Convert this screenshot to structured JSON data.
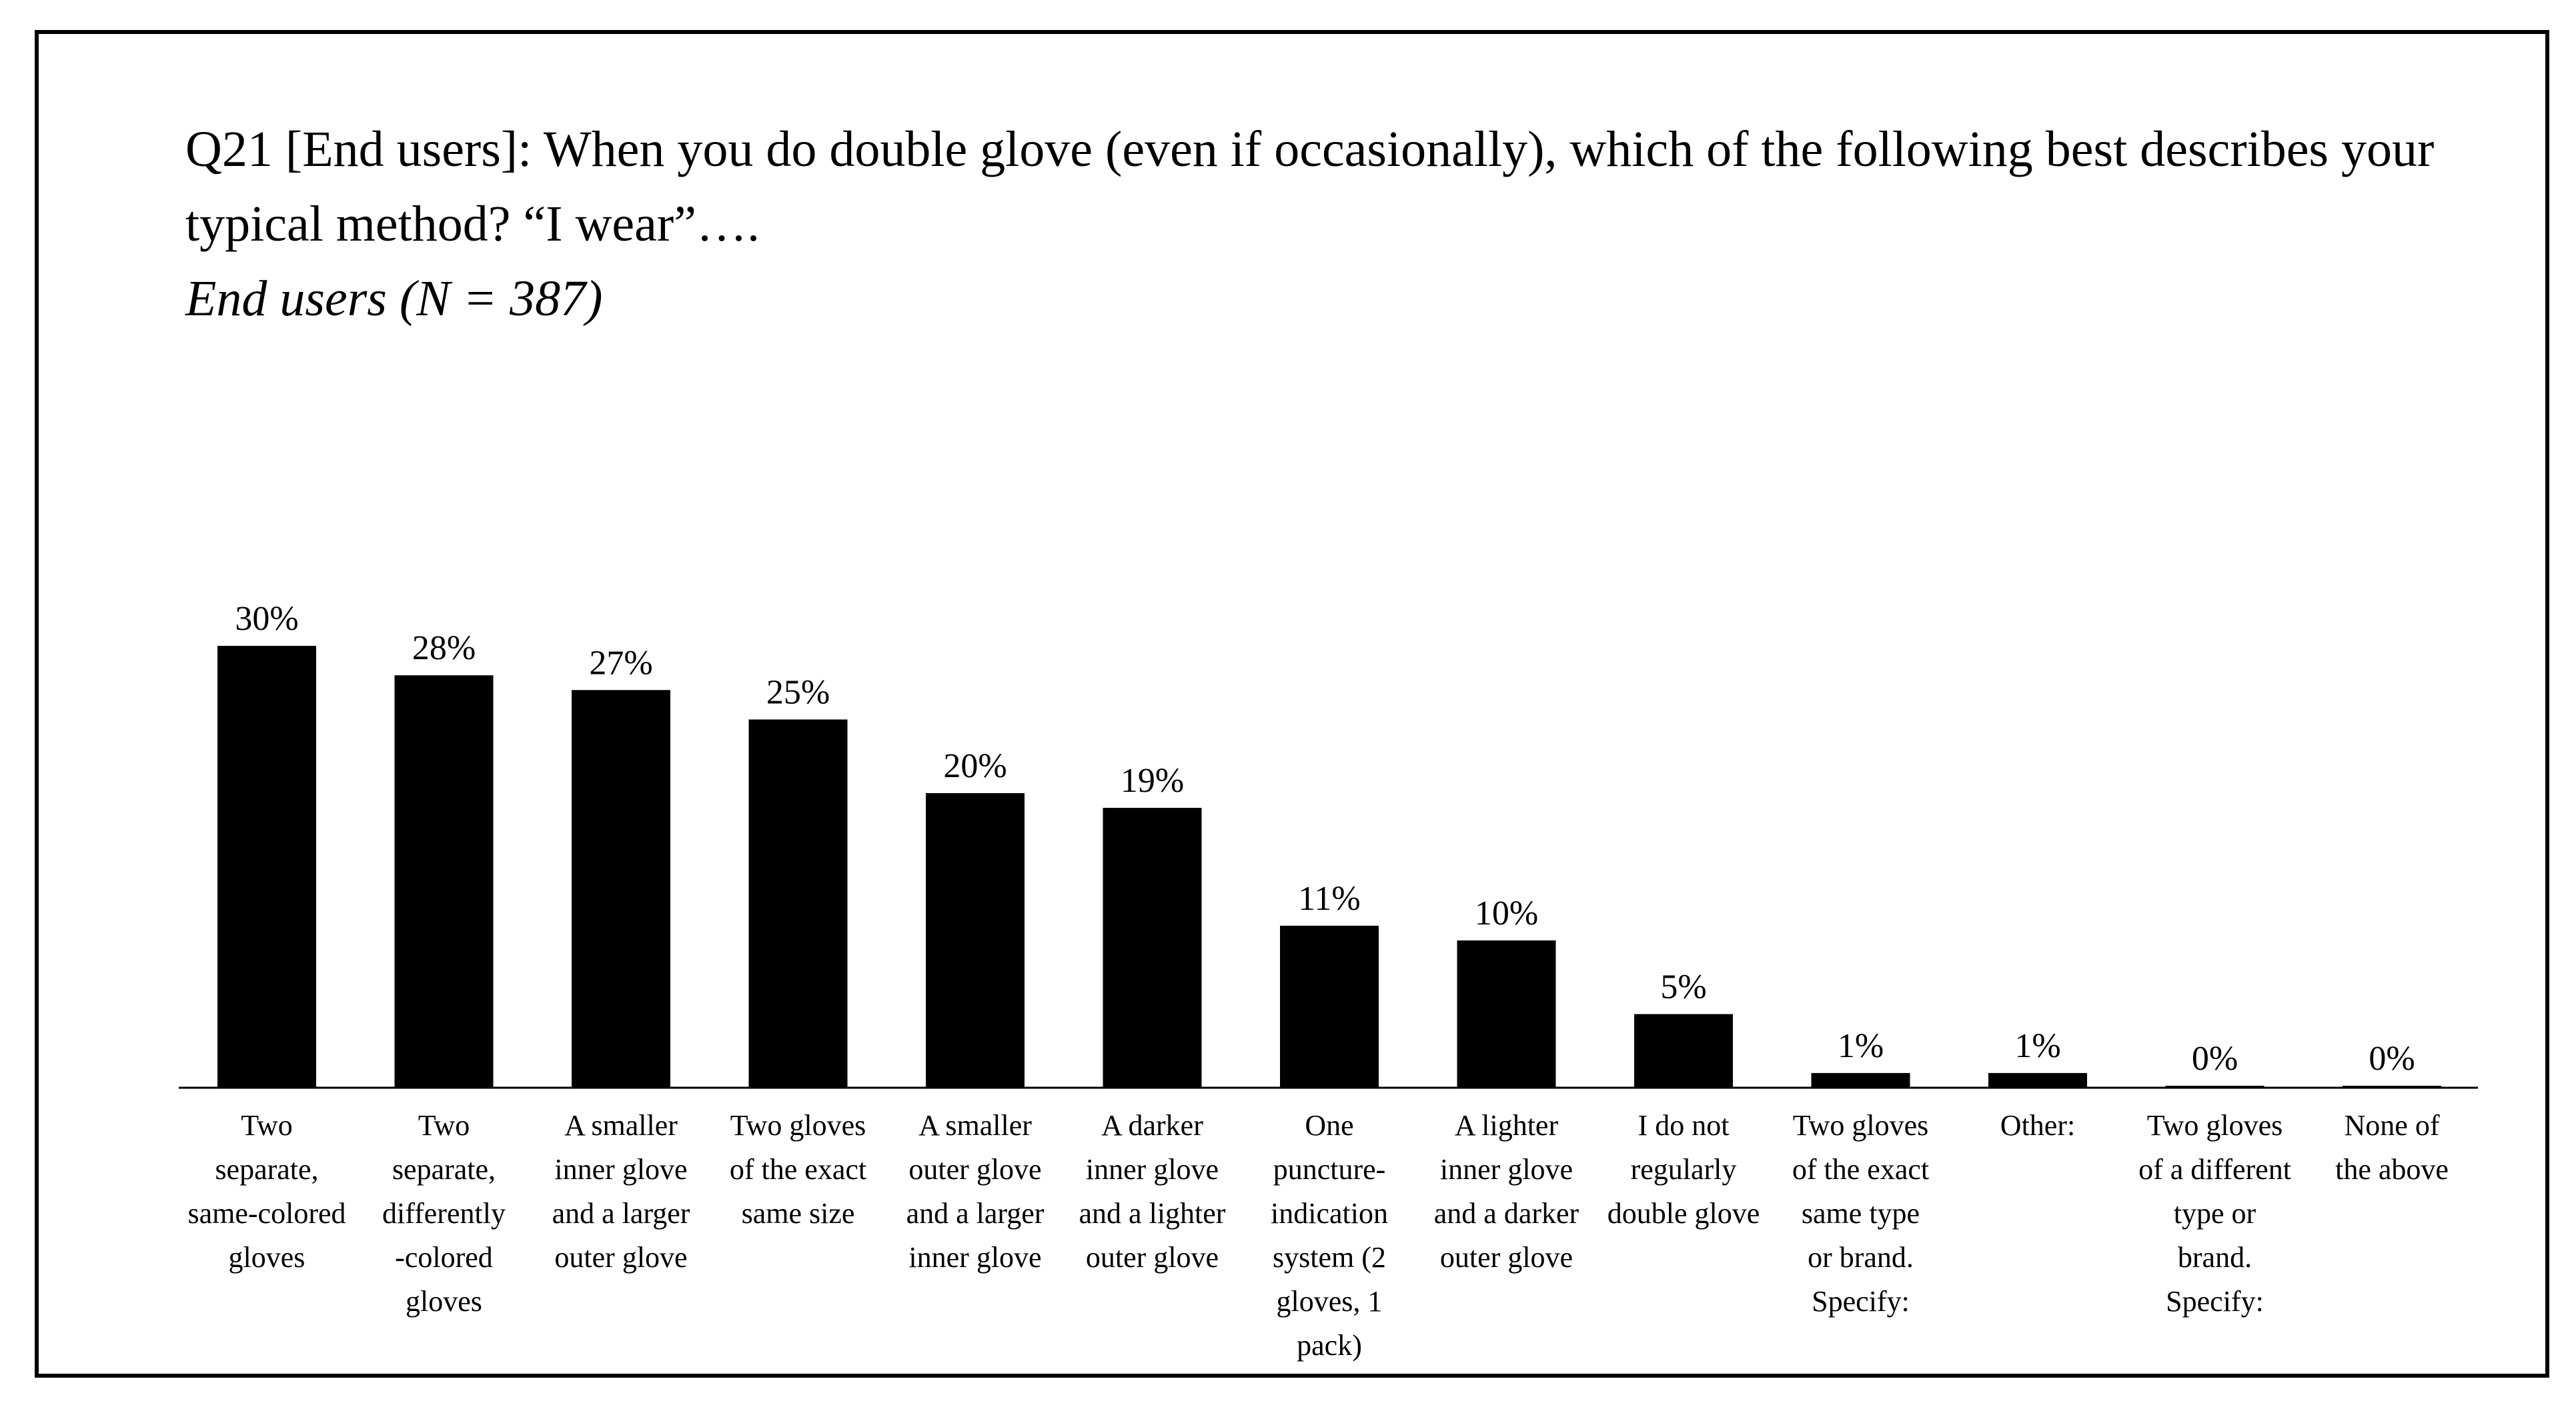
{
  "chart_data": {
    "type": "bar",
    "title": "Q21 [End users]: When you do double glove (even if occasionally), which of the following best describes your typical method? “I wear”….",
    "subtitle": "End users (N = 387)",
    "xlabel": "",
    "ylabel": "",
    "ylim": [
      0,
      30
    ],
    "grid": false,
    "legend": "none",
    "bar_color": "#000000",
    "categories": [
      [
        "Two",
        "separate,",
        "same-colored",
        "gloves"
      ],
      [
        "Two",
        "separate,",
        "differently",
        "-colored",
        "gloves"
      ],
      [
        "A smaller",
        "inner glove",
        "and a larger",
        "outer glove"
      ],
      [
        "Two gloves",
        "of the exact",
        "same size"
      ],
      [
        "A smaller",
        "outer glove",
        "and a larger",
        "inner glove"
      ],
      [
        "A darker",
        "inner glove",
        "and a lighter",
        "outer glove"
      ],
      [
        "One",
        "puncture-",
        "indication",
        "system (2",
        "gloves, 1",
        "pack)"
      ],
      [
        "A lighter",
        "inner glove",
        "and a darker",
        "outer glove"
      ],
      [
        "I do not",
        "regularly",
        "double glove"
      ],
      [
        "Two gloves",
        "of the exact",
        "same type",
        "or brand.",
        "Specify:"
      ],
      [
        "Other:"
      ],
      [
        "Two gloves",
        "of a different",
        "type or",
        "brand.",
        "Specify:"
      ],
      [
        "None of",
        "the above"
      ]
    ],
    "values": [
      30,
      28,
      27,
      25,
      20,
      19,
      11,
      10,
      5,
      1,
      1,
      0,
      0
    ],
    "value_labels": [
      "30%",
      "28%",
      "27%",
      "25%",
      "20%",
      "19%",
      "11%",
      "10%",
      "5%",
      "1%",
      "1%",
      "0%",
      "0%"
    ]
  }
}
